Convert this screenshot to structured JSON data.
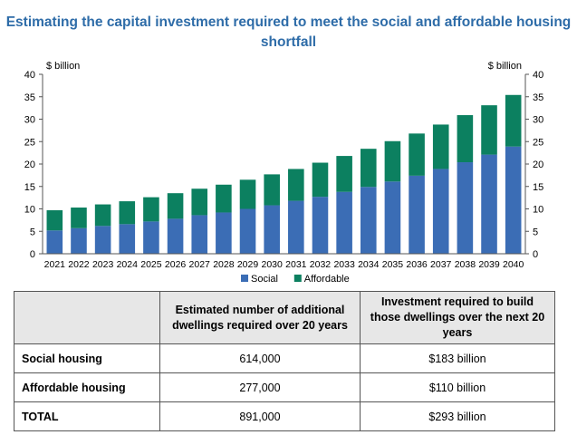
{
  "title_lines": [
    "Estimating the capital investment required to meet the social and affordable housing",
    "shortfall"
  ],
  "chart_data": {
    "type": "bar",
    "stacked": true,
    "title": "Estimating the capital investment required to meet the social and affordable housing shortfall",
    "y_unit_left": "$ billion",
    "y_unit_right": "$ billion",
    "ylim": [
      0,
      40
    ],
    "yticks": [
      0,
      5,
      10,
      15,
      20,
      25,
      30,
      35,
      40
    ],
    "grid": false,
    "legend_position": "bottom-center",
    "categories": [
      "2021",
      "2022",
      "2023",
      "2024",
      "2025",
      "2026",
      "2027",
      "2028",
      "2029",
      "2030",
      "2031",
      "2032",
      "2033",
      "2034",
      "2035",
      "2036",
      "2037",
      "2038",
      "2039",
      "2040"
    ],
    "series": [
      {
        "name": "Social",
        "color": "#3b6db5",
        "values": [
          5.2,
          5.7,
          6.2,
          6.6,
          7.2,
          7.8,
          8.6,
          9.2,
          10.0,
          10.8,
          11.8,
          12.7,
          13.8,
          14.9,
          16.1,
          17.4,
          18.9,
          20.4,
          22.1,
          23.9
        ]
      },
      {
        "name": "Affordable",
        "color": "#0c8060",
        "values": [
          4.5,
          4.6,
          4.8,
          5.1,
          5.4,
          5.7,
          5.9,
          6.2,
          6.5,
          6.9,
          7.1,
          7.6,
          8.0,
          8.5,
          9.0,
          9.4,
          9.9,
          10.5,
          11.0,
          11.5
        ]
      }
    ]
  },
  "table": {
    "headers": [
      "",
      "Estimated number of additional dwellings required over 20 years",
      "Investment required to build those dwellings over the next 20 years"
    ],
    "rows": [
      {
        "label": "Social housing",
        "dwellings": "614,000",
        "investment": "$183 billion"
      },
      {
        "label": "Affordable housing",
        "dwellings": "277,000",
        "investment": "$110 billion"
      },
      {
        "label": "TOTAL",
        "dwellings": "891,000",
        "investment": "$293 billion"
      }
    ]
  }
}
